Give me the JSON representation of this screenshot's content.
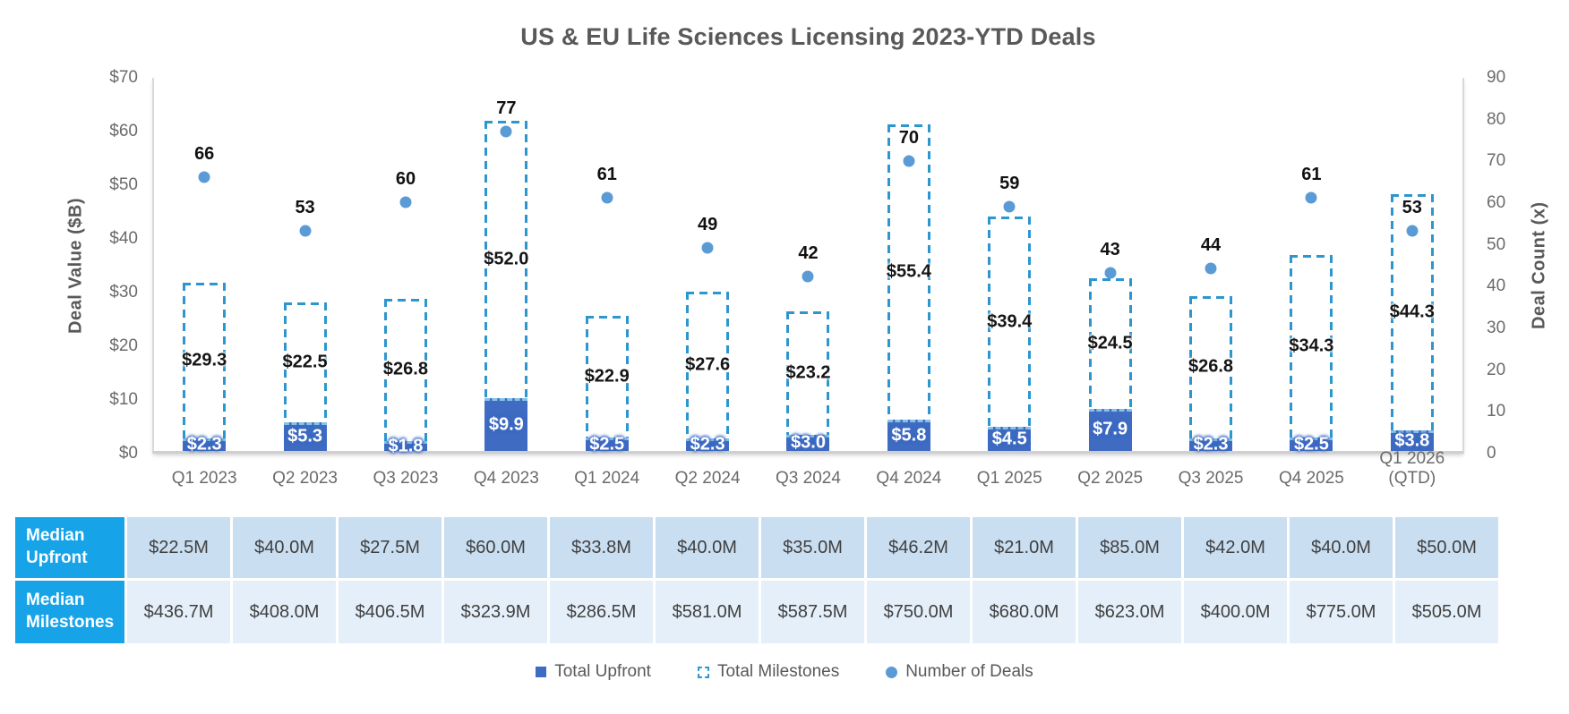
{
  "title": "US & EU Life Sciences Licensing 2023-YTD Deals",
  "colors": {
    "upfront_bar": "#3F6CC2",
    "milestones_dash": "#2E96CE",
    "deals_dot": "#5B9BD5",
    "axis_text": "#6B6B6B",
    "title_text": "#595959",
    "table_header_bg": "#17A3E8",
    "table_row1_bg": "#C9DEF1",
    "table_row2_bg": "#E4EFF9"
  },
  "chart_data": {
    "type": "bar",
    "subtype": "stacked-bar-with-scatter-combo",
    "title": "US & EU Life Sciences Licensing 2023-YTD Deals",
    "categories": [
      "Q1 2023",
      "Q2 2023",
      "Q3 2023",
      "Q4 2023",
      "Q1 2024",
      "Q2 2024",
      "Q3 2024",
      "Q4 2024",
      "Q1 2025",
      "Q2 2025",
      "Q3 2025",
      "Q4 2025",
      "Q1 2026"
    ],
    "category_notes": [
      "",
      "",
      "",
      "",
      "",
      "",
      "",
      "",
      "",
      "",
      "",
      "",
      "(QTD)"
    ],
    "series": [
      {
        "name": "Total Upfront",
        "type": "bar",
        "style": "solid",
        "axis": "left",
        "color": "#3F6CC2",
        "values": [
          2.3,
          5.3,
          1.8,
          9.9,
          2.5,
          2.3,
          3.0,
          5.8,
          4.5,
          7.9,
          2.3,
          2.5,
          3.8
        ],
        "labels": [
          "$2.3",
          "$5.3",
          "$1.8",
          "$9.9",
          "$2.5",
          "$2.3",
          "$3.0",
          "$5.8",
          "$4.5",
          "$7.9",
          "$2.3",
          "$2.5",
          "$3.8"
        ]
      },
      {
        "name": "Total Milestones",
        "type": "bar",
        "style": "dashed-outline",
        "stacked_on": "Total Upfront",
        "axis": "left",
        "color": "#2E96CE",
        "values": [
          29.3,
          22.5,
          26.8,
          52.0,
          22.9,
          27.6,
          23.2,
          55.4,
          39.4,
          24.5,
          26.8,
          34.3,
          44.3
        ],
        "labels": [
          "$29.3",
          "$22.5",
          "$26.8",
          "$52.0",
          "$22.9",
          "$27.6",
          "$23.2",
          "$55.4",
          "$39.4",
          "$24.5",
          "$26.8",
          "$34.3",
          "$44.3"
        ]
      },
      {
        "name": "Number of Deals",
        "type": "scatter",
        "axis": "right",
        "color": "#5B9BD5",
        "values": [
          66,
          53,
          60,
          77,
          61,
          49,
          42,
          70,
          59,
          43,
          44,
          61,
          53
        ]
      }
    ],
    "left_axis": {
      "label": "Deal Value ($B)",
      "min": 0,
      "max": 70,
      "tick_step": 10,
      "ticks": [
        "$70",
        "$60",
        "$50",
        "$40",
        "$30",
        "$20",
        "$10",
        "$0"
      ]
    },
    "right_axis": {
      "label": "Deal Count (x)",
      "min": 0,
      "max": 90,
      "tick_step": 10,
      "ticks": [
        "90",
        "80",
        "70",
        "60",
        "50",
        "40",
        "30",
        "20",
        "10",
        "0"
      ]
    },
    "grid": false,
    "legend_position": "bottom"
  },
  "table": {
    "rows": [
      {
        "header": "Median Upfront",
        "header_lines": [
          "Median",
          "Upfront"
        ],
        "values": [
          "$22.5M",
          "$40.0M",
          "$27.5M",
          "$60.0M",
          "$33.8M",
          "$40.0M",
          "$35.0M",
          "$46.2M",
          "$21.0M",
          "$85.0M",
          "$42.0M",
          "$40.0M",
          "$50.0M"
        ]
      },
      {
        "header": "Median Milestones",
        "header_lines": [
          "Median",
          "Milestones"
        ],
        "values": [
          "$436.7M",
          "$408.0M",
          "$406.5M",
          "$323.9M",
          "$286.5M",
          "$581.0M",
          "$587.5M",
          "$750.0M",
          "$680.0M",
          "$623.0M",
          "$400.0M",
          "$775.0M",
          "$505.0M"
        ]
      }
    ]
  },
  "legend": {
    "items": [
      {
        "label": "Total Upfront",
        "swatch": "solid-square"
      },
      {
        "label": "Total Milestones",
        "swatch": "dashed-square"
      },
      {
        "label": "Number of Deals",
        "swatch": "circle"
      }
    ]
  }
}
